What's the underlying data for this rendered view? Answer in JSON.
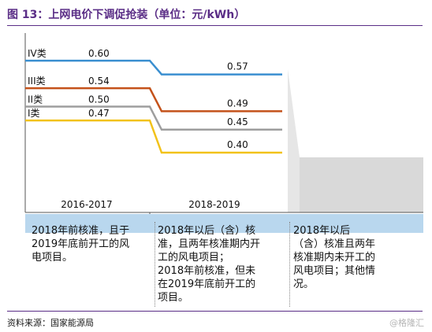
{
  "title": "图 13：上网电价下调促抢装（单位：元/kWh）",
  "chart_data": {
    "type": "line",
    "title": "上网电价下调促抢装（单位：元/kWh）",
    "categories": [
      "2016-2017",
      "2018-2019"
    ],
    "series": [
      {
        "name": "IV类",
        "values": [
          0.6,
          0.57
        ],
        "color": "#3a8fd0"
      },
      {
        "name": "III类",
        "values": [
          0.54,
          0.49
        ],
        "color": "#c4521a"
      },
      {
        "name": "II类",
        "values": [
          0.5,
          0.45
        ],
        "color": "#9e9e9e"
      },
      {
        "name": "I类",
        "values": [
          0.47,
          0.4
        ],
        "color": "#f2c21a"
      }
    ],
    "data_labels": [
      [
        "0.60",
        "0.57"
      ],
      [
        "0.54",
        "0.49"
      ],
      [
        "0.50",
        "0.45"
      ],
      [
        "0.47",
        "0.40"
      ]
    ],
    "ylim": [
      0.27,
      0.66
    ],
    "grid": false,
    "legend": "left"
  },
  "descriptions": [
    "2018年前核准，且于\n2019年底前开工的风\n电项目。",
    "2018年以后（含）核\n准，且两年核准期内开\n工的风电项目；\n2018年前核准，但未\n在2019年底前开工的\n项目。",
    "2018年以后\n（含）核准且两年\n核准期内未开工的\n风电项目；其他情\n况。"
  ],
  "source": "资料来源：国家能源局",
  "watermark": "@格隆汇"
}
